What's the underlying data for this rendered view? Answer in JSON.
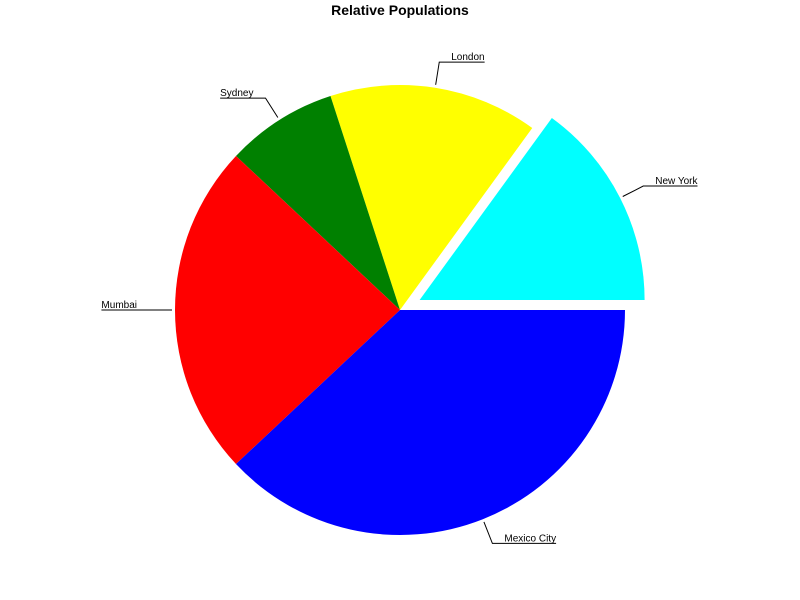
{
  "chart_data": {
    "type": "pie",
    "title": "Relative Populations",
    "start_angle_deg": 0,
    "direction": "counterclockwise",
    "slices": [
      {
        "label": "New York",
        "value": 15,
        "color": "#00ffff",
        "exploded": true
      },
      {
        "label": "London",
        "value": 15,
        "color": "#ffff00",
        "exploded": false
      },
      {
        "label": "Sydney",
        "value": 8,
        "color": "#008000",
        "exploded": false
      },
      {
        "label": "Mumbai",
        "value": 24,
        "color": "#ff0000",
        "exploded": false
      },
      {
        "label": "Mexico City",
        "value": 38,
        "color": "#0000ff",
        "exploded": false
      }
    ]
  }
}
